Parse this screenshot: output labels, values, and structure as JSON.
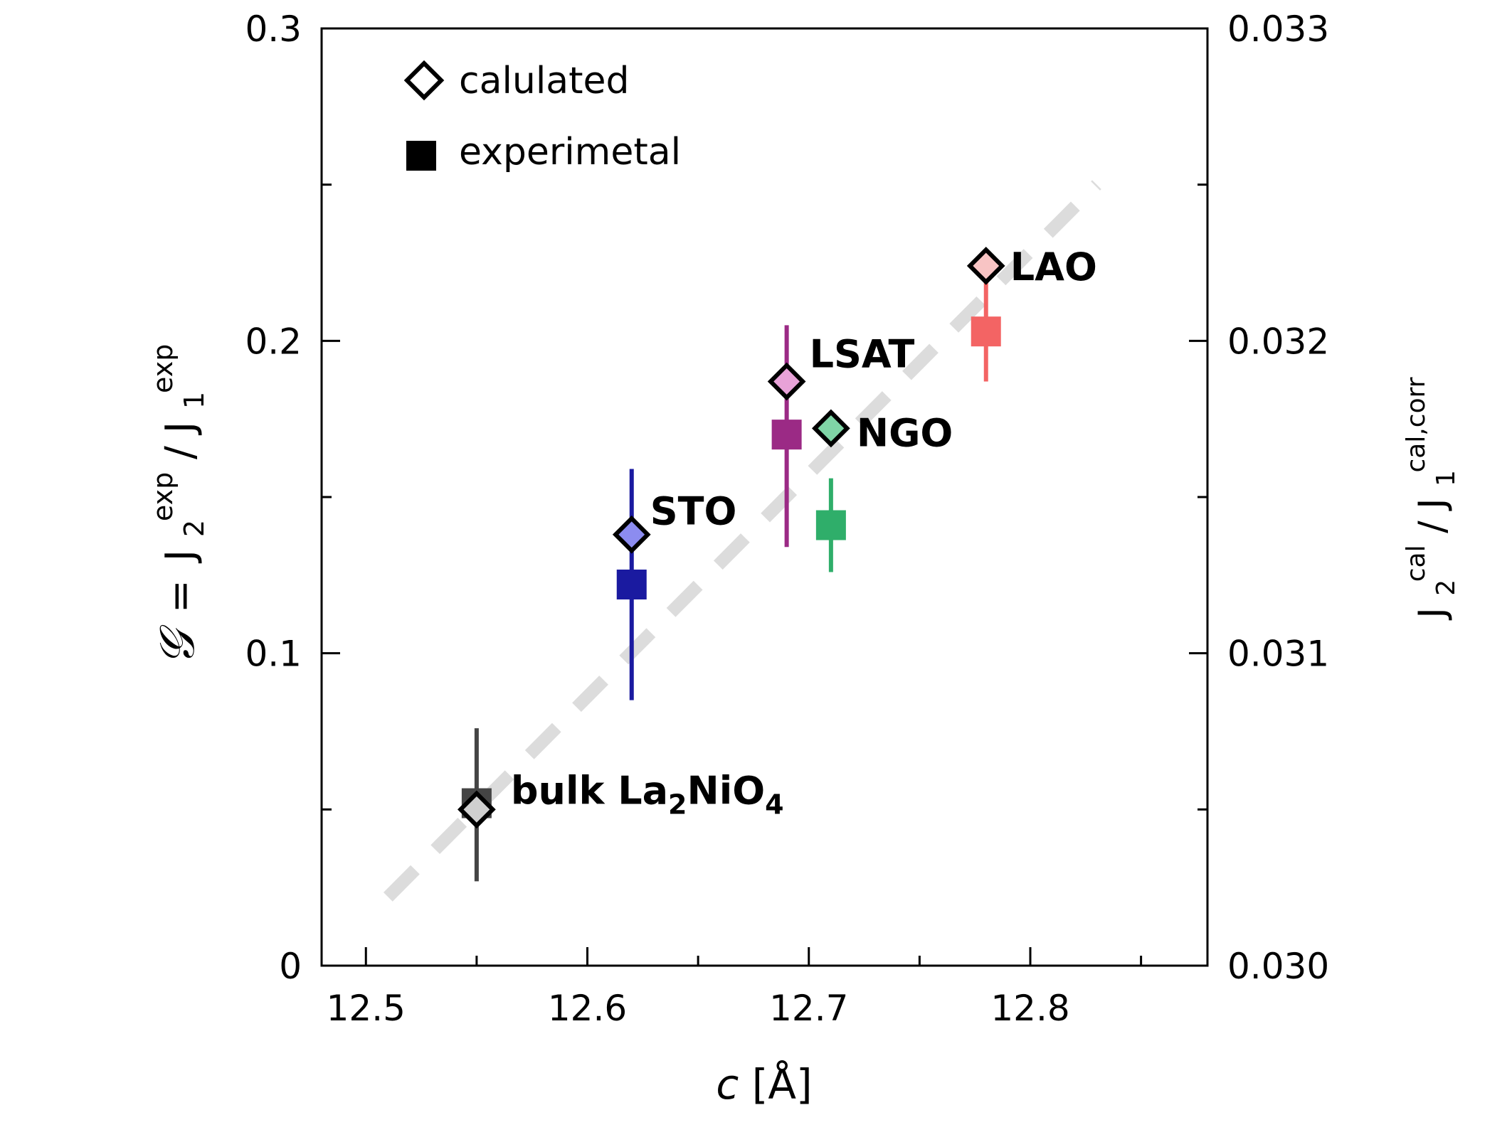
{
  "chart_data": {
    "type": "scatter",
    "xlabel": "c [Å]",
    "xlabel_symbol": "c",
    "xlabel_unit": "[Å]",
    "ylabel_left": "𝒢 = J2exp/J1exp",
    "ylabel_left_symbol": "𝒢",
    "ylabel_left_eq": "=",
    "ylabel_left_j": "J",
    "ylabel_left_sub_num": "2",
    "ylabel_left_sup_num": "exp",
    "ylabel_left_slash": "/",
    "ylabel_left_sub_den": "1",
    "ylabel_left_sup_den": "exp",
    "ylabel_right": "J2cal/J1cal,corr",
    "ylabel_right_j": "J",
    "ylabel_right_sub_num": "2",
    "ylabel_right_sup_num": "cal",
    "ylabel_right_slash": "/",
    "ylabel_right_sub_den": "1",
    "ylabel_right_sup_den": "cal,corr",
    "xlim": [
      12.48,
      12.88
    ],
    "ylim_left": [
      0,
      0.3
    ],
    "ylim_right": [
      0.03,
      0.033
    ],
    "x_ticks": [
      12.5,
      12.6,
      12.7,
      12.8
    ],
    "x_tick_labels": [
      "12.5",
      "12.6",
      "12.7",
      "12.8"
    ],
    "x_minor_ticks": [
      12.55,
      12.65,
      12.75,
      12.85
    ],
    "y_left_ticks": [
      0,
      0.1,
      0.2,
      0.3
    ],
    "y_left_tick_labels": [
      "0",
      "0.1",
      "0.2",
      "0.3"
    ],
    "y_left_minor_ticks": [
      0.05,
      0.15,
      0.25
    ],
    "y_right_ticks": [
      0.03,
      0.031,
      0.032,
      0.033
    ],
    "y_right_tick_labels": [
      "0.030",
      "0.031",
      "0.032",
      "0.033"
    ],
    "y_right_minor_ticks": [
      0.0305,
      0.0315,
      0.0325
    ],
    "legend": {
      "position": "top-left",
      "items": [
        {
          "marker": "open-diamond",
          "label": "calulated"
        },
        {
          "marker": "filled-square",
          "label": "experimetal"
        }
      ]
    },
    "trend_line": {
      "style": "dashed",
      "color": "#dcdcdc",
      "x": [
        12.51,
        12.83
      ],
      "y": [
        0.022,
        0.25
      ]
    },
    "points": [
      {
        "label": "bulk La",
        "label_sub": "2",
        "label_mid": "NiO",
        "label_sub2": "4",
        "x": 12.55,
        "exp": 0.052,
        "err_low": 0.027,
        "err_high": 0.076,
        "calc": 0.0305,
        "color": "#444444",
        "fill": "#cfcfcf"
      },
      {
        "label": "STO",
        "x": 12.62,
        "exp": 0.122,
        "err_low": 0.085,
        "err_high": 0.159,
        "calc": 0.03138,
        "color": "#1a1aa0",
        "fill": "#8c8cf0"
      },
      {
        "label": "LSAT",
        "x": 12.69,
        "exp": 0.17,
        "err_low": 0.134,
        "err_high": 0.205,
        "calc": 0.03187,
        "color": "#9b2a85",
        "fill": "#e8a2d8"
      },
      {
        "label": "NGO",
        "x": 12.71,
        "exp": 0.141,
        "err_low": 0.126,
        "err_high": 0.156,
        "calc": 0.03172,
        "color": "#2fae6a",
        "fill": "#7fd5a6"
      },
      {
        "label": "LAO",
        "x": 12.78,
        "exp": 0.203,
        "err_low": 0.187,
        "err_high": 0.221,
        "calc": 0.03224,
        "color": "#f36464",
        "fill": "#f8c4c4"
      }
    ]
  }
}
